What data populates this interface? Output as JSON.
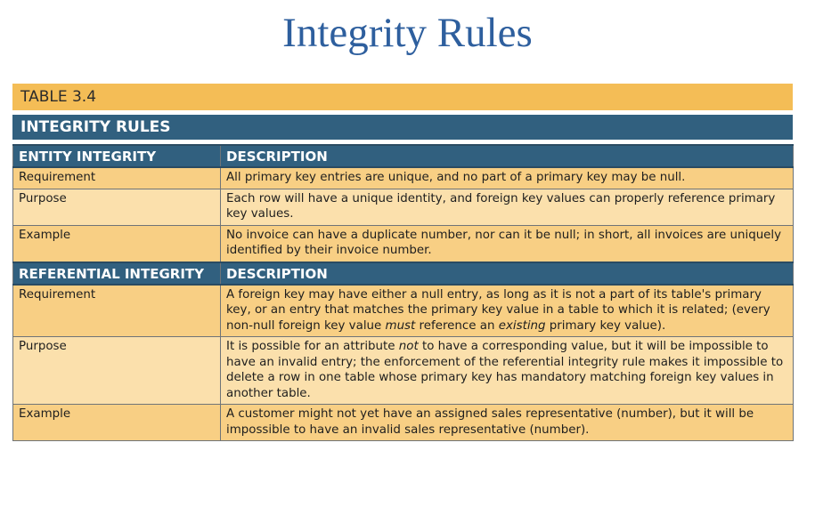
{
  "title": "Integrity Rules",
  "table": {
    "number": "TABLE 3.4",
    "caption": "INTEGRITY RULES",
    "sections": [
      {
        "header": "ENTITY INTEGRITY",
        "desc_header": "DESCRIPTION",
        "rows": [
          {
            "label": "Requirement",
            "text": "All primary key entries are unique, and no part of a primary key may be null."
          },
          {
            "label": "Purpose",
            "text": "Each row will have a unique identity, and foreign key values can properly reference primary key values."
          },
          {
            "label": "Example",
            "text": "No invoice can have a duplicate number, nor can it be null; in short, all invoices are uniquely identified by their invoice number."
          }
        ]
      },
      {
        "header": "REFERENTIAL INTEGRITY",
        "desc_header": "DESCRIPTION",
        "rows": [
          {
            "label": "Requirement",
            "text_parts": [
              "A foreign key may have either a null entry, as long as it is not a part of its table's primary key, or an entry that matches the primary key value in a table to which it is related; (every non-null foreign key value ",
              "must",
              " reference an ",
              "existing",
              " primary key value)."
            ]
          },
          {
            "label": "Purpose",
            "text_parts": [
              "It is possible for an attribute ",
              "not",
              " to have a corresponding value, but it will be impossible to have an invalid entry; the enforcement of the referential integrity rule makes it impossible to delete a row in one table whose primary key has mandatory matching foreign key values in another table."
            ]
          },
          {
            "label": "Example",
            "text": "A customer might not yet have an assigned sales representative (number), but it will be impossible to have an invalid sales representative (number)."
          }
        ]
      }
    ]
  }
}
